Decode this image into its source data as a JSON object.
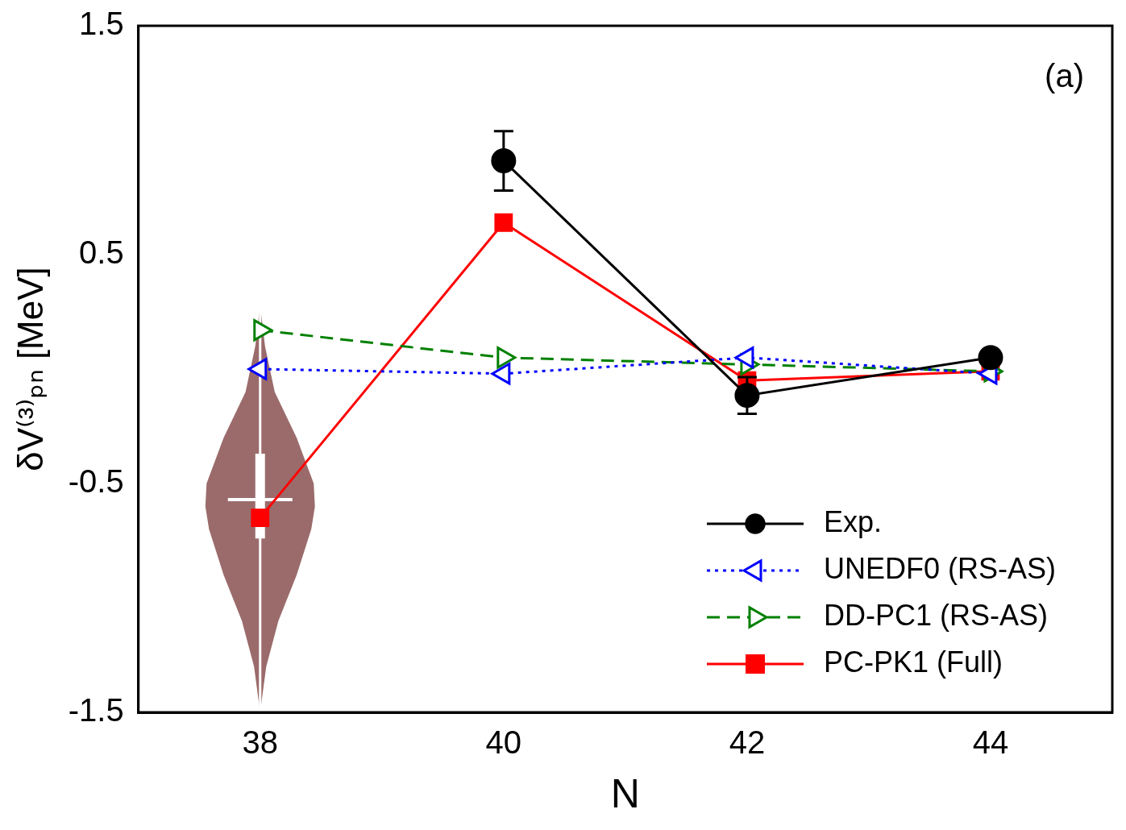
{
  "chart_data": {
    "type": "line",
    "x_label": "N",
    "y_label": "δV⁽³⁾ₚₙ [MeV]",
    "annotation": "(a)",
    "x": [
      38,
      40,
      42,
      44
    ],
    "xlim": [
      37,
      45
    ],
    "xticks": [
      38,
      40,
      42,
      44
    ],
    "ylim": [
      -1.5,
      1.5
    ],
    "yticks": [
      -1.5,
      -0.5,
      0.5,
      1.5
    ],
    "grid": false,
    "legend": "lower right",
    "series": [
      {
        "name": "Exp.",
        "color": "#000000",
        "marker": "circle",
        "line_style": "solid",
        "values": [
          null,
          0.91,
          -0.115,
          0.05
        ],
        "errors": [
          null,
          0.13,
          0.08,
          0.02
        ]
      },
      {
        "name": "UNEDF0 (RS-AS)",
        "color": "#0000ff",
        "marker": "triangle-left-open",
        "line_style": "dotted",
        "values": [
          0.0,
          -0.02,
          0.05,
          -0.02
        ]
      },
      {
        "name": "DD-PC1 (RS-AS)",
        "color": "#008000",
        "marker": "triangle-right-open",
        "line_style": "dashed",
        "values": [
          0.17,
          0.05,
          0.02,
          -0.01
        ]
      },
      {
        "name": "PC-PK1 (Full)",
        "color": "#ff0000",
        "marker": "square",
        "line_style": "solid",
        "values": [
          -0.65,
          0.64,
          -0.05,
          -0.01
        ]
      }
    ],
    "violin": {
      "x": 38,
      "color": "#9b6b6b",
      "y": [
        0.28,
        0.1,
        -0.1,
        -0.3,
        -0.5,
        -0.6,
        -0.7,
        -0.9,
        -1.1,
        -1.3,
        -1.5
      ],
      "half_width": [
        0.0,
        0.04,
        0.12,
        0.3,
        0.44,
        0.45,
        0.42,
        0.3,
        0.15,
        0.05,
        0.0
      ],
      "median": -0.57,
      "q1": -0.74,
      "q3": -0.37
    }
  }
}
